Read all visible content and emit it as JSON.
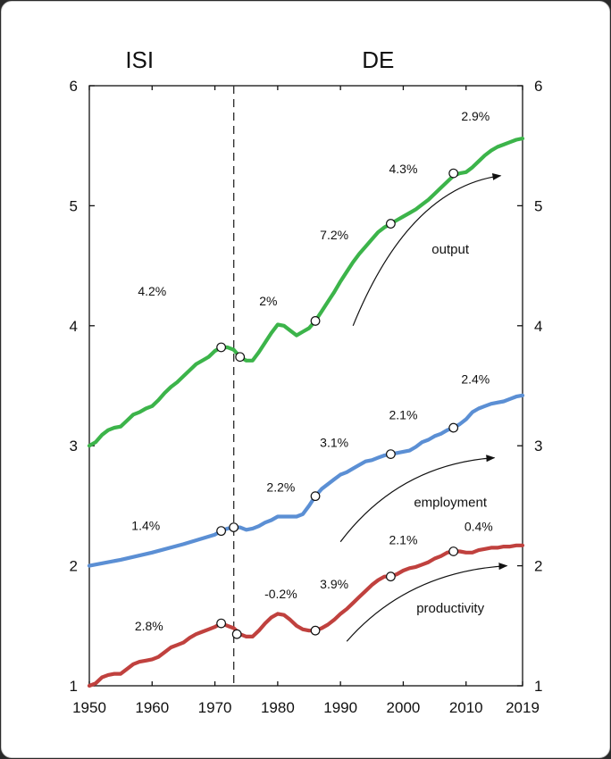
{
  "chart_data": {
    "type": "line",
    "title": "",
    "xlabel": "",
    "ylabel": "",
    "xlim": [
      1950,
      2019
    ],
    "ylim": [
      1,
      6
    ],
    "x_ticks": [
      "1950",
      "1960",
      "1970",
      "1980",
      "1990",
      "2000",
      "2010",
      "2019"
    ],
    "y_ticks_left": [
      "1",
      "2",
      "3",
      "4",
      "5",
      "6"
    ],
    "y_ticks_right": [
      "1",
      "2",
      "3",
      "4",
      "5",
      "6"
    ],
    "periods": [
      {
        "label": "ISI"
      },
      {
        "label": "DE"
      }
    ],
    "divider_year": 1973,
    "series": [
      {
        "name": "output",
        "color": "#3cb44a",
        "x": [
          1950,
          1951,
          1952,
          1953,
          1954,
          1955,
          1956,
          1957,
          1958,
          1959,
          1960,
          1961,
          1962,
          1963,
          1964,
          1965,
          1966,
          1967,
          1968,
          1969,
          1970,
          1971,
          1972,
          1973,
          1974,
          1975,
          1976,
          1977,
          1978,
          1979,
          1980,
          1981,
          1982,
          1983,
          1984,
          1985,
          1986,
          1987,
          1988,
          1989,
          1990,
          1991,
          1992,
          1993,
          1994,
          1995,
          1996,
          1997,
          1998,
          1999,
          2000,
          2001,
          2002,
          2003,
          2004,
          2005,
          2006,
          2007,
          2008,
          2009,
          2010,
          2011,
          2012,
          2013,
          2014,
          2015,
          2016,
          2017,
          2018,
          2019
        ],
        "values": [
          3.0,
          3.03,
          3.09,
          3.13,
          3.15,
          3.16,
          3.21,
          3.26,
          3.28,
          3.31,
          3.33,
          3.38,
          3.44,
          3.49,
          3.53,
          3.58,
          3.63,
          3.68,
          3.71,
          3.74,
          3.79,
          3.82,
          3.82,
          3.8,
          3.74,
          3.71,
          3.71,
          3.78,
          3.86,
          3.94,
          4.01,
          4.0,
          3.96,
          3.92,
          3.95,
          3.98,
          4.04,
          4.12,
          4.2,
          4.28,
          4.37,
          4.45,
          4.53,
          4.6,
          4.66,
          4.72,
          4.78,
          4.82,
          4.85,
          4.88,
          4.91,
          4.94,
          4.97,
          5.01,
          5.05,
          5.1,
          5.15,
          5.2,
          5.25,
          5.27,
          5.28,
          5.32,
          5.37,
          5.42,
          5.46,
          5.49,
          5.51,
          5.53,
          5.55,
          5.56
        ],
        "markers": [
          {
            "x": 1971,
            "y": 3.82
          },
          {
            "x": 1974,
            "y": 3.74
          },
          {
            "x": 1986,
            "y": 4.04
          },
          {
            "x": 1998,
            "y": 4.85
          },
          {
            "x": 2008,
            "y": 5.27
          }
        ],
        "rates": [
          {
            "text": "4.2%",
            "x": 1960,
            "y": 4.25
          },
          {
            "text": "2%",
            "x": 1978.5,
            "y": 4.17
          },
          {
            "text": "7.2%",
            "x": 1989,
            "y": 4.72
          },
          {
            "text": "4.3%",
            "x": 2000,
            "y": 5.27
          },
          {
            "text": "2.9%",
            "x": 2011.5,
            "y": 5.71
          }
        ],
        "label": {
          "text": "output",
          "x": 2007.5,
          "y": 4.6
        },
        "arrow": {
          "x1": 1992,
          "y1": 4.0,
          "x2": 2015.5,
          "y2": 5.25
        }
      },
      {
        "name": "employment",
        "color": "#5b8fd4",
        "x": [
          1950,
          1955,
          1960,
          1965,
          1970,
          1971,
          1972,
          1973,
          1974,
          1975,
          1976,
          1977,
          1978,
          1979,
          1980,
          1981,
          1982,
          1983,
          1984,
          1985,
          1986,
          1987,
          1988,
          1989,
          1990,
          1991,
          1992,
          1993,
          1994,
          1995,
          1996,
          1997,
          1998,
          1999,
          2000,
          2001,
          2002,
          2003,
          2004,
          2005,
          2006,
          2007,
          2008,
          2009,
          2010,
          2011,
          2012,
          2013,
          2014,
          2015,
          2016,
          2017,
          2018,
          2019
        ],
        "values": [
          2.0,
          2.05,
          2.11,
          2.18,
          2.26,
          2.29,
          2.31,
          2.32,
          2.32,
          2.3,
          2.31,
          2.33,
          2.36,
          2.38,
          2.41,
          2.41,
          2.41,
          2.41,
          2.43,
          2.5,
          2.58,
          2.64,
          2.68,
          2.72,
          2.76,
          2.78,
          2.81,
          2.84,
          2.87,
          2.88,
          2.9,
          2.92,
          2.93,
          2.94,
          2.95,
          2.96,
          2.99,
          3.03,
          3.05,
          3.08,
          3.1,
          3.13,
          3.15,
          3.18,
          3.22,
          3.28,
          3.31,
          3.33,
          3.35,
          3.36,
          3.37,
          3.39,
          3.41,
          3.42
        ],
        "markers": [
          {
            "x": 1971,
            "y": 2.29
          },
          {
            "x": 1973,
            "y": 2.32
          },
          {
            "x": 1986,
            "y": 2.58
          },
          {
            "x": 1998,
            "y": 2.93
          },
          {
            "x": 2008,
            "y": 3.15
          }
        ],
        "rates": [
          {
            "text": "1.4%",
            "x": 1959,
            "y": 2.3
          },
          {
            "text": "2.2%",
            "x": 1980.5,
            "y": 2.62
          },
          {
            "text": "3.1%",
            "x": 1989,
            "y": 2.99
          },
          {
            "text": "2.1%",
            "x": 2000,
            "y": 3.22
          },
          {
            "text": "2.4%",
            "x": 2011.5,
            "y": 3.52
          }
        ],
        "label": {
          "text": "employment",
          "x": 2007.5,
          "y": 2.49
        },
        "arrow": {
          "x1": 1990,
          "y1": 2.2,
          "x2": 2014.5,
          "y2": 2.9
        }
      },
      {
        "name": "productivity",
        "color": "#c0413e",
        "x": [
          1950,
          1951,
          1952,
          1953,
          1954,
          1955,
          1956,
          1957,
          1958,
          1959,
          1960,
          1961,
          1962,
          1963,
          1964,
          1965,
          1966,
          1967,
          1968,
          1969,
          1970,
          1971,
          1972,
          1973,
          1974,
          1975,
          1976,
          1977,
          1978,
          1979,
          1980,
          1981,
          1982,
          1983,
          1984,
          1985,
          1986,
          1987,
          1988,
          1989,
          1990,
          1991,
          1992,
          1993,
          1994,
          1995,
          1996,
          1997,
          1998,
          1999,
          2000,
          2001,
          2002,
          2003,
          2004,
          2005,
          2006,
          2007,
          2008,
          2009,
          2010,
          2011,
          2012,
          2013,
          2014,
          2015,
          2016,
          2017,
          2018,
          2019
        ],
        "values": [
          1.0,
          1.02,
          1.07,
          1.09,
          1.1,
          1.1,
          1.14,
          1.18,
          1.2,
          1.21,
          1.22,
          1.24,
          1.28,
          1.32,
          1.34,
          1.36,
          1.4,
          1.43,
          1.45,
          1.47,
          1.49,
          1.52,
          1.5,
          1.48,
          1.43,
          1.41,
          1.41,
          1.46,
          1.52,
          1.57,
          1.6,
          1.59,
          1.55,
          1.5,
          1.47,
          1.46,
          1.46,
          1.48,
          1.51,
          1.55,
          1.6,
          1.64,
          1.69,
          1.74,
          1.79,
          1.84,
          1.88,
          1.91,
          1.91,
          1.93,
          1.96,
          1.98,
          1.99,
          2.01,
          2.03,
          2.06,
          2.08,
          2.11,
          2.12,
          2.12,
          2.11,
          2.11,
          2.13,
          2.14,
          2.15,
          2.15,
          2.16,
          2.16,
          2.17,
          2.17
        ],
        "markers": [
          {
            "x": 1971,
            "y": 1.52
          },
          {
            "x": 1973.5,
            "y": 1.43
          },
          {
            "x": 1986,
            "y": 1.46
          },
          {
            "x": 1998,
            "y": 1.91
          },
          {
            "x": 2008,
            "y": 2.12
          }
        ],
        "rates": [
          {
            "text": "2.8%",
            "x": 1959.5,
            "y": 1.46
          },
          {
            "text": "-0.2%",
            "x": 1980.5,
            "y": 1.73
          },
          {
            "text": "3.9%",
            "x": 1989,
            "y": 1.81
          },
          {
            "text": "2.1%",
            "x": 2000,
            "y": 2.18
          },
          {
            "text": "0.4%",
            "x": 2012,
            "y": 2.29
          }
        ],
        "label": {
          "text": "productivity",
          "x": 2007.5,
          "y": 1.61
        },
        "arrow": {
          "x1": 1991,
          "y1": 1.37,
          "x2": 2016.5,
          "y2": 2.0
        }
      }
    ],
    "grid": false,
    "legend": "none"
  }
}
